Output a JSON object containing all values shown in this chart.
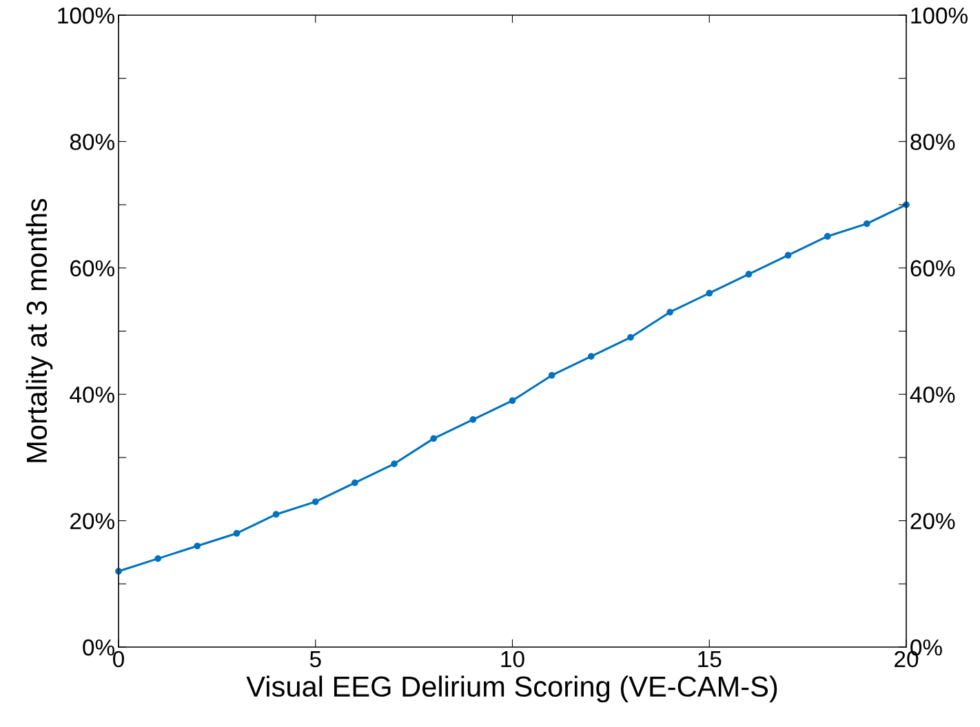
{
  "chart_data": {
    "type": "line",
    "xlabel": "Visual EEG Delirium Scoring (VE-CAM-S)",
    "ylabel": "Mortality at 3 months",
    "x": [
      0,
      1,
      2,
      3,
      4,
      5,
      6,
      7,
      8,
      9,
      10,
      11,
      12,
      13,
      14,
      15,
      16,
      17,
      18,
      19,
      20
    ],
    "series": [
      {
        "color": "#0072bd",
        "values": [
          12,
          14,
          16,
          18,
          21,
          23,
          26,
          29,
          33,
          36,
          39,
          43,
          46,
          49,
          53,
          56,
          59,
          62,
          65,
          67,
          70
        ]
      }
    ],
    "marker": "circle",
    "line_style": "solid",
    "grid": false,
    "xlim": [
      0,
      20
    ],
    "xticks": [
      0,
      5,
      10,
      15,
      20
    ],
    "ylim": [
      0,
      100
    ],
    "yticks": [
      {
        "value": 0,
        "label": "0%"
      },
      {
        "value": 10,
        "label": null
      },
      {
        "value": 20,
        "label": "20%"
      },
      {
        "value": 30,
        "label": null
      },
      {
        "value": 40,
        "label": "40%"
      },
      {
        "value": 50,
        "label": null
      },
      {
        "value": 60,
        "label": "60%"
      },
      {
        "value": 70,
        "label": null
      },
      {
        "value": 80,
        "label": "80%"
      },
      {
        "value": 90,
        "label": null
      },
      {
        "value": 100,
        "label": "100%"
      }
    ],
    "y2lim": [
      0,
      100
    ],
    "y2ticks": [
      {
        "value": 0,
        "label": "0%"
      },
      {
        "value": 10,
        "label": null
      },
      {
        "value": 20,
        "label": "20%"
      },
      {
        "value": 30,
        "label": null
      },
      {
        "value": 40,
        "label": "40%"
      },
      {
        "value": 50,
        "label": null
      },
      {
        "value": 60,
        "label": "60%"
      },
      {
        "value": 70,
        "label": null
      },
      {
        "value": 80,
        "label": "80%"
      },
      {
        "value": 90,
        "label": null
      },
      {
        "value": 100,
        "label": "100%"
      }
    ]
  }
}
